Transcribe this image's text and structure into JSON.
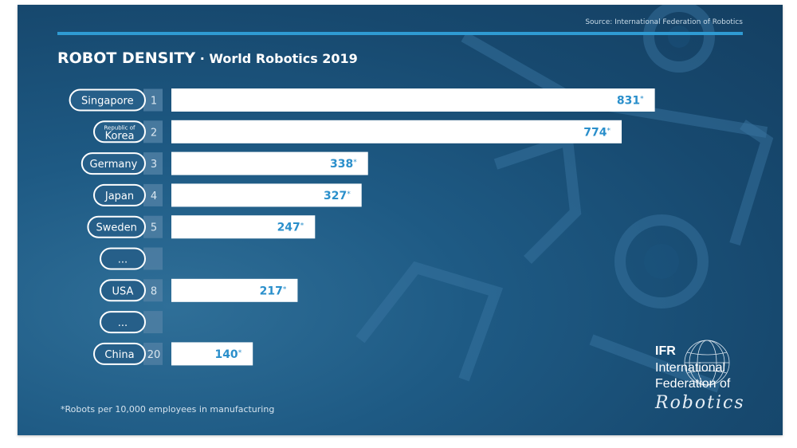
{
  "source": "Source: International Federation of Robotics",
  "title": {
    "main": "ROBOT DENSITY",
    "separator": " · ",
    "subtitle": "World Robotics 2019"
  },
  "footnote": "*Robots per 10,000 employees in manufacturing",
  "logo": {
    "abbr": "IFR",
    "line1": "International",
    "line2": "Federation of",
    "line3": "Robotics"
  },
  "colors": {
    "bar": "#ffffff",
    "value_text": "#2a8fcb",
    "pill_border": "#ffffff",
    "rank_box": "#4f7fa3",
    "accent_rule": "#2f9bd3"
  },
  "chart_data": {
    "type": "bar",
    "orientation": "horizontal",
    "value_suffix": "*",
    "rows": [
      {
        "country": "Singapore",
        "rank": "1",
        "value": 831
      },
      {
        "country_small": "Republic of",
        "country": "Korea",
        "rank": "2",
        "value": 774
      },
      {
        "country": "Germany",
        "rank": "3",
        "value": 338
      },
      {
        "country": "Japan",
        "rank": "4",
        "value": 327
      },
      {
        "country": "Sweden",
        "rank": "5",
        "value": 247
      },
      {
        "country": "...",
        "rank": "",
        "value": null
      },
      {
        "country": "USA",
        "rank": "8",
        "value": 217
      },
      {
        "country": "...",
        "rank": "",
        "value": null
      },
      {
        "country": "China",
        "rank": "20",
        "value": 140
      }
    ]
  }
}
